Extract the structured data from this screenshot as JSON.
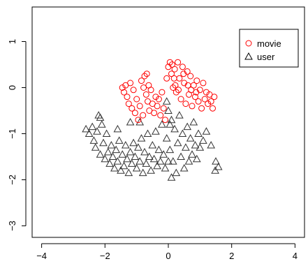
{
  "chart_data": {
    "type": "scatter",
    "title": "",
    "xlabel": "",
    "ylabel": "",
    "xlim": [
      -4.3,
      4.3
    ],
    "ylim": [
      -3.25,
      1.75
    ],
    "x_ticks": [
      "−4",
      "−2",
      "0",
      "2",
      "4"
    ],
    "x_tick_values": [
      -4,
      -2,
      0,
      2,
      4
    ],
    "y_ticks": [
      "−3",
      "−2",
      "−1",
      "0",
      "1"
    ],
    "y_tick_values": [
      -3,
      -2,
      -1,
      0,
      1
    ],
    "grid": false,
    "legend_position": "top-right",
    "series": [
      {
        "name": "movie",
        "marker": "circle",
        "color": "#ff0000",
        "points": [
          [
            -1.45,
            0.0
          ],
          [
            -1.4,
            -0.1
          ],
          [
            -1.35,
            0.05
          ],
          [
            -1.3,
            -0.2
          ],
          [
            -1.25,
            -0.35
          ],
          [
            -1.2,
            0.1
          ],
          [
            -1.15,
            -0.45
          ],
          [
            -1.1,
            -0.05
          ],
          [
            -1.05,
            -0.55
          ],
          [
            -1.0,
            -0.25
          ],
          [
            -0.95,
            -0.7
          ],
          [
            -0.9,
            -0.4
          ],
          [
            -0.85,
            0.15
          ],
          [
            -0.8,
            -0.6
          ],
          [
            -0.75,
            0.25
          ],
          [
            -0.7,
            -0.15
          ],
          [
            -0.68,
            0.3
          ],
          [
            -0.65,
            -0.3
          ],
          [
            -0.62,
            0.05
          ],
          [
            -0.6,
            -0.5
          ],
          [
            -0.55,
            -0.05
          ],
          [
            -0.5,
            -0.35
          ],
          [
            -0.45,
            -0.55
          ],
          [
            -0.4,
            -0.2
          ],
          [
            -0.35,
            -0.4
          ],
          [
            -0.3,
            -0.25
          ],
          [
            -0.25,
            -0.6
          ],
          [
            -0.2,
            -0.1
          ],
          [
            -0.15,
            -0.45
          ],
          [
            -0.1,
            -0.7
          ],
          [
            -0.05,
            0.2
          ],
          [
            0.0,
            0.45
          ],
          [
            0.05,
            0.55
          ],
          [
            0.1,
            0.3
          ],
          [
            0.12,
            0.5
          ],
          [
            0.15,
            0.0
          ],
          [
            0.2,
            0.4
          ],
          [
            0.25,
            -0.1
          ],
          [
            0.3,
            0.55
          ],
          [
            0.35,
            0.2
          ],
          [
            0.4,
            -0.25
          ],
          [
            0.45,
            0.45
          ],
          [
            0.5,
            0.1
          ],
          [
            0.55,
            -0.35
          ],
          [
            0.6,
            0.35
          ],
          [
            0.65,
            -0.15
          ],
          [
            0.7,
            0.25
          ],
          [
            0.75,
            -0.4
          ],
          [
            0.8,
            0.05
          ],
          [
            0.85,
            -0.2
          ],
          [
            0.9,
            0.15
          ],
          [
            0.95,
            -0.3
          ],
          [
            1.0,
            -0.05
          ],
          [
            1.05,
            -0.45
          ],
          [
            1.1,
            0.1
          ],
          [
            1.15,
            -0.25
          ],
          [
            1.2,
            -0.1
          ],
          [
            1.25,
            -0.35
          ],
          [
            1.3,
            -0.15
          ],
          [
            1.35,
            -0.3
          ],
          [
            1.4,
            -0.45
          ],
          [
            1.45,
            -0.2
          ],
          [
            0.22,
            0.05
          ],
          [
            0.32,
            -0.05
          ],
          [
            0.48,
            0.3
          ],
          [
            0.62,
            0.05
          ],
          [
            0.72,
            -0.05
          ],
          [
            0.88,
            -0.1
          ],
          [
            0.18,
            0.2
          ],
          [
            -0.78,
            0.0
          ]
        ]
      },
      {
        "name": "user",
        "marker": "triangle",
        "color": "#333333",
        "points": [
          [
            -2.6,
            -0.9
          ],
          [
            -2.5,
            -1.0
          ],
          [
            -2.4,
            -0.85
          ],
          [
            -2.35,
            -1.15
          ],
          [
            -2.3,
            -1.3
          ],
          [
            -2.25,
            -0.95
          ],
          [
            -2.2,
            -0.6
          ],
          [
            -2.15,
            -1.45
          ],
          [
            -2.1,
            -0.8
          ],
          [
            -2.05,
            -1.2
          ],
          [
            -2.0,
            -1.55
          ],
          [
            -1.95,
            -1.0
          ],
          [
            -1.9,
            -1.4
          ],
          [
            -1.85,
            -1.65
          ],
          [
            -1.8,
            -1.25
          ],
          [
            -1.75,
            -1.5
          ],
          [
            -1.7,
            -1.75
          ],
          [
            -1.65,
            -1.35
          ],
          [
            -1.6,
            -1.6
          ],
          [
            -1.55,
            -1.15
          ],
          [
            -1.5,
            -1.8
          ],
          [
            -1.45,
            -1.45
          ],
          [
            -1.4,
            -1.7
          ],
          [
            -1.35,
            -1.25
          ],
          [
            -1.3,
            -1.55
          ],
          [
            -1.25,
            -1.85
          ],
          [
            -1.2,
            -1.4
          ],
          [
            -1.15,
            -1.65
          ],
          [
            -1.1,
            -1.2
          ],
          [
            -1.05,
            -1.5
          ],
          [
            -1.0,
            -1.75
          ],
          [
            -0.95,
            -1.3
          ],
          [
            -0.9,
            -1.6
          ],
          [
            -0.85,
            -1.1
          ],
          [
            -0.8,
            -1.85
          ],
          [
            -0.75,
            -1.4
          ],
          [
            -0.7,
            -1.65
          ],
          [
            -0.65,
            -1.0
          ],
          [
            -0.6,
            -1.5
          ],
          [
            -0.55,
            -1.8
          ],
          [
            -0.5,
            -1.25
          ],
          [
            -0.45,
            -1.55
          ],
          [
            -0.4,
            -0.95
          ],
          [
            -0.35,
            -1.7
          ],
          [
            -0.3,
            -1.35
          ],
          [
            -0.25,
            -1.6
          ],
          [
            -0.2,
            -0.8
          ],
          [
            -0.15,
            -1.45
          ],
          [
            -0.1,
            -1.75
          ],
          [
            -0.05,
            -1.1
          ],
          [
            0.0,
            -0.5
          ],
          [
            0.05,
            -1.35
          ],
          [
            0.1,
            -0.7
          ],
          [
            0.15,
            -1.6
          ],
          [
            0.2,
            -0.9
          ],
          [
            0.25,
            -1.85
          ],
          [
            0.3,
            -1.2
          ],
          [
            0.35,
            -0.6
          ],
          [
            0.4,
            -1.5
          ],
          [
            0.45,
            -1.0
          ],
          [
            0.5,
            -1.75
          ],
          [
            0.55,
            -1.3
          ],
          [
            0.6,
            -0.85
          ],
          [
            0.65,
            -1.6
          ],
          [
            0.7,
            -1.1
          ],
          [
            0.75,
            -1.45
          ],
          [
            0.8,
            -0.75
          ],
          [
            0.85,
            -1.25
          ],
          [
            0.9,
            -1.55
          ],
          [
            0.95,
            -1.0
          ],
          [
            1.0,
            -1.3
          ],
          [
            1.1,
            -1.15
          ],
          [
            1.2,
            -0.95
          ],
          [
            1.35,
            -1.25
          ],
          [
            1.5,
            -1.6
          ],
          [
            -2.15,
            -0.65
          ],
          [
            -1.2,
            -0.75
          ],
          [
            -0.9,
            -0.75
          ],
          [
            0.0,
            -1.6
          ],
          [
            -1.6,
            -0.9
          ],
          [
            1.48,
            -1.8
          ],
          [
            1.58,
            -1.72
          ],
          [
            0.05,
            -0.8
          ],
          [
            -0.05,
            -0.3
          ],
          [
            0.1,
            -1.95
          ]
        ]
      }
    ]
  }
}
